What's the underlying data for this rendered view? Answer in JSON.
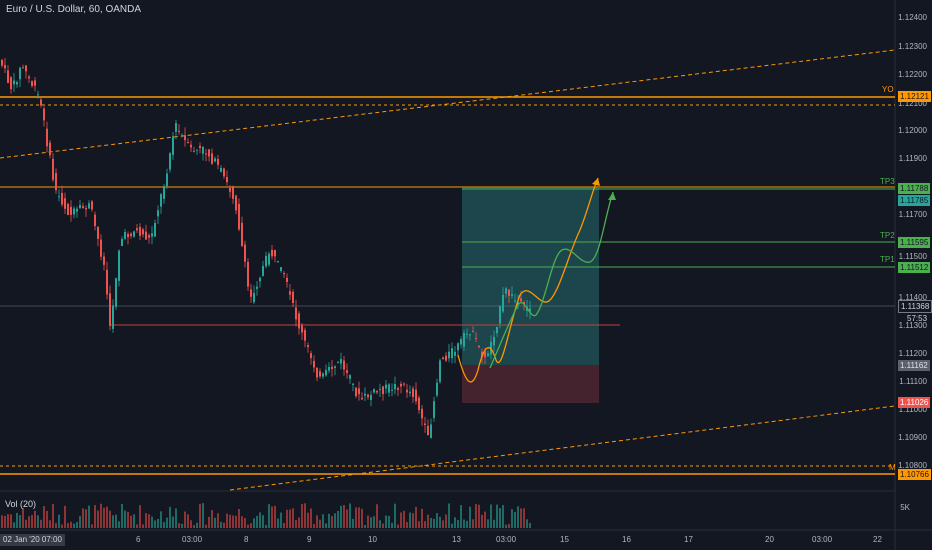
{
  "header": {
    "symbol_title": "Euro / U.S. Dollar, 60, OANDA"
  },
  "volume": {
    "label": "Vol (20)",
    "axis_label": "5K"
  },
  "price_axis": {
    "ticks": [
      "1.12400",
      "1.12300",
      "1.12200",
      "1.12100",
      "1.12000",
      "1.11900",
      "1.11700",
      "1.11500",
      "1.11400",
      "1.11300",
      "1.11200",
      "1.11100",
      "1.11000",
      "1.10900",
      "1.10800"
    ]
  },
  "tags": {
    "yo_label": "YO",
    "yo_price": "1.12121",
    "tp3_label": "TP3",
    "tp3_price": "1.11788",
    "tp3_level": "1.11785",
    "tp2_label": "TP2",
    "tp2_price": "1.11595",
    "tp1_label": "TP1",
    "tp1_price": "1.11512",
    "last_price": "1.11368",
    "countdown": "57:53",
    "entry_price": "1.11162",
    "stop_price": "1.11026",
    "m_label": "M",
    "m_price": "1.10766"
  },
  "time_axis": {
    "ticks": [
      "6",
      "03:00",
      "8",
      "9",
      "10",
      "13",
      "03:00",
      "15",
      "16",
      "17",
      "20",
      "03:00",
      "22"
    ],
    "cursor_label": "02 Jan '20  07:00"
  },
  "colors": {
    "background": "#131722",
    "up": "#26a69a",
    "down": "#ef5350",
    "orange": "#ff9800",
    "green": "#4caf50"
  }
}
